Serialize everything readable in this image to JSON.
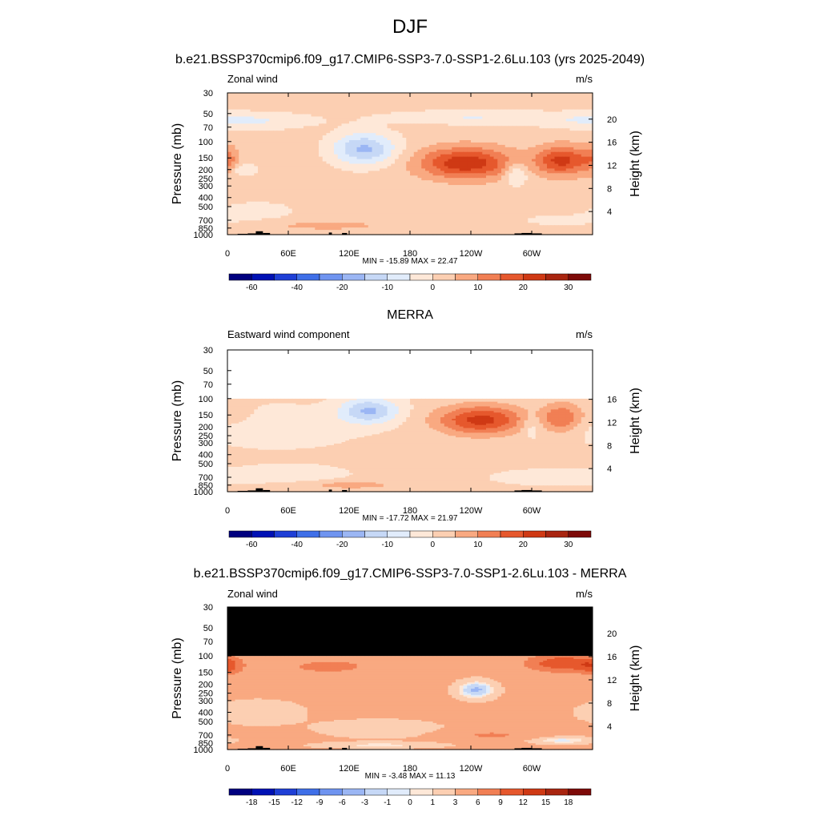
{
  "header": {
    "title": "DJF"
  },
  "colors": {
    "scale_main": [
      "#00007f",
      "#0011b4",
      "#1f3fd6",
      "#3f6fe8",
      "#6f94f0",
      "#9bb6f4",
      "#c6d8f6",
      "#e1ecfb",
      "#fee8d8",
      "#fccfb2",
      "#f9a981",
      "#f17f54",
      "#e6582d",
      "#cf3914",
      "#a92510",
      "#7d0a08"
    ],
    "scale_diff": [
      "#00007f",
      "#0011b4",
      "#1f3fd6",
      "#3f6fe8",
      "#6f94f0",
      "#9bb6f4",
      "#c6d8f6",
      "#e1ecfb",
      "#fee8d8",
      "#fccfb2",
      "#f9a981",
      "#f17f54",
      "#e6582d",
      "#cf3914",
      "#a92510",
      "#7d0a08"
    ],
    "missing_fill": "#000000",
    "topography": "#000000"
  },
  "chart_data": [
    {
      "type": "heatmap",
      "title": "b.e21.BSSP370cmip6.f09_g17.CMIP6-SSP3-7.0-SSP1-2.6Lu.103 (yrs 2025-2049)",
      "left_label": "Zonal wind",
      "units_label": "m/s",
      "ylabel": "Pressure (mb)",
      "ylabel_right": "Height (km)",
      "x_tick_labels": [
        "0",
        "60E",
        "120E",
        "180",
        "120W",
        "60W"
      ],
      "y_tick_labels": [
        "30",
        "50",
        "70",
        "100",
        "150",
        "200",
        "250",
        "300",
        "400",
        "500",
        "700",
        "850",
        "1000"
      ],
      "y_right_tick_labels": [
        "20",
        "16",
        "12",
        "8",
        "4"
      ],
      "stats": "MIN = -15.89  MAX =  22.47",
      "colorbar_labels": [
        "-60",
        "-40",
        "-20",
        "-10",
        "0",
        "10",
        "20",
        "30"
      ],
      "xlim": [
        0,
        360
      ],
      "ylim": [
        1000,
        30
      ],
      "y_log_scale": true,
      "missing_above_mb": null,
      "base_value": 2,
      "blobs": [
        {
          "lon": 135,
          "p": 120,
          "amp": -18,
          "slon": 22,
          "slogp": 0.28
        },
        {
          "lon": 15,
          "p": 200,
          "amp": -7,
          "slon": 10,
          "slogp": 0.12
        },
        {
          "lon": 15,
          "p": 60,
          "amp": -8,
          "slon": 45,
          "slogp": 0.15
        },
        {
          "lon": 240,
          "p": 55,
          "amp": -7,
          "slon": 60,
          "slogp": 0.12
        },
        {
          "lon": 30,
          "p": 550,
          "amp": -5,
          "slon": 25,
          "slogp": 0.15
        },
        {
          "lon": 235,
          "p": 170,
          "amp": 22,
          "slon": 32,
          "slogp": 0.27
        },
        {
          "lon": 330,
          "p": 160,
          "amp": 20,
          "slon": 18,
          "slogp": 0.25
        },
        {
          "lon": 285,
          "p": 220,
          "amp": -10,
          "slon": 8,
          "slogp": 0.2
        },
        {
          "lon": 0,
          "p": 160,
          "amp": 8,
          "slon": 8,
          "slogp": 0.25
        },
        {
          "lon": 100,
          "p": 800,
          "amp": 5,
          "slon": 40,
          "slogp": 0.08
        },
        {
          "lon": 330,
          "p": 700,
          "amp": -4,
          "slon": 30,
          "slogp": 0.1
        }
      ]
    },
    {
      "type": "heatmap",
      "title": "MERRA",
      "left_label": "Eastward wind component",
      "units_label": "m/s",
      "ylabel": "Pressure (mb)",
      "ylabel_right": "Height (km)",
      "x_tick_labels": [
        "0",
        "60E",
        "120E",
        "180",
        "120W",
        "60W"
      ],
      "y_tick_labels": [
        "30",
        "50",
        "70",
        "100",
        "150",
        "200",
        "250",
        "300",
        "400",
        "500",
        "700",
        "850",
        "1000"
      ],
      "y_right_tick_labels": [
        "16",
        "12",
        "8",
        "4"
      ],
      "stats": "MIN = -17.72  MAX =  21.97",
      "colorbar_labels": [
        "-60",
        "-40",
        "-20",
        "-10",
        "0",
        "10",
        "20",
        "30"
      ],
      "xlim": [
        0,
        360
      ],
      "ylim": [
        1000,
        30
      ],
      "y_log_scale": true,
      "missing_above_mb": 100,
      "missing_fill": "#ffffff",
      "base_value": 1,
      "blobs": [
        {
          "lon": 140,
          "p": 135,
          "amp": -17,
          "slon": 20,
          "slogp": 0.22
        },
        {
          "lon": 50,
          "p": 200,
          "amp": -6,
          "slon": 45,
          "slogp": 0.3
        },
        {
          "lon": 60,
          "p": 650,
          "amp": -5,
          "slon": 35,
          "slogp": 0.15
        },
        {
          "lon": 250,
          "p": 170,
          "amp": 21,
          "slon": 30,
          "slogp": 0.25
        },
        {
          "lon": 330,
          "p": 160,
          "amp": 14,
          "slon": 14,
          "slogp": 0.25
        },
        {
          "lon": 300,
          "p": 200,
          "amp": -6,
          "slon": 7,
          "slogp": 0.2
        },
        {
          "lon": 120,
          "p": 850,
          "amp": 6,
          "slon": 40,
          "slogp": 0.08
        },
        {
          "lon": 320,
          "p": 700,
          "amp": -5,
          "slon": 35,
          "slogp": 0.12
        },
        {
          "lon": 10,
          "p": 150,
          "amp": 4,
          "slon": 12,
          "slogp": 0.2
        }
      ]
    },
    {
      "type": "heatmap",
      "title": "b.e21.BSSP370cmip6.f09_g17.CMIP6-SSP3-7.0-SSP1-2.6Lu.103 - MERRA",
      "left_label": "Zonal wind",
      "units_label": "m/s",
      "ylabel": "Pressure (mb)",
      "ylabel_right": "Height (km)",
      "x_tick_labels": [
        "0",
        "60E",
        "120E",
        "180",
        "120W",
        "60W"
      ],
      "y_tick_labels": [
        "30",
        "50",
        "70",
        "100",
        "150",
        "200",
        "250",
        "300",
        "400",
        "500",
        "700",
        "850",
        "1000"
      ],
      "y_right_tick_labels": [
        "20",
        "16",
        "12",
        "8",
        "4"
      ],
      "stats": "MIN =  -3.48  MAX =  11.13",
      "colorbar_labels": [
        "-18",
        "-15",
        "-12",
        "-9",
        "-6",
        "-3",
        "-1",
        "0",
        "1",
        "3",
        "6",
        "9",
        "12",
        "15",
        "18"
      ],
      "xlim": [
        0,
        360
      ],
      "ylim": [
        1000,
        30
      ],
      "y_log_scale": true,
      "missing_above_mb": 100,
      "missing_fill": "#000000",
      "base_value": 3.5,
      "blobs": [
        {
          "lon": 245,
          "p": 230,
          "amp": -7,
          "slon": 12,
          "slogp": 0.14
        },
        {
          "lon": 330,
          "p": 120,
          "amp": 8,
          "slon": 25,
          "slogp": 0.15
        },
        {
          "lon": 0,
          "p": 130,
          "amp": 5,
          "slon": 10,
          "slogp": 0.15
        },
        {
          "lon": 100,
          "p": 130,
          "amp": 4,
          "slon": 30,
          "slogp": 0.12
        },
        {
          "lon": 30,
          "p": 400,
          "amp": -2,
          "slon": 30,
          "slogp": 0.2
        },
        {
          "lon": 150,
          "p": 600,
          "amp": -2,
          "slon": 40,
          "slogp": 0.15
        },
        {
          "lon": 330,
          "p": 800,
          "amp": -4,
          "slon": 20,
          "slogp": 0.06
        },
        {
          "lon": 150,
          "p": 900,
          "amp": -3,
          "slon": 40,
          "slogp": 0.05
        },
        {
          "lon": 260,
          "p": 700,
          "amp": 3,
          "slon": 30,
          "slogp": 0.08
        }
      ]
    }
  ],
  "topography": [
    {
      "lon0": 10,
      "lon1": 20,
      "p": 980
    },
    {
      "lon0": 20,
      "lon1": 30,
      "p": 970
    },
    {
      "lon0": 28,
      "lon1": 35,
      "p": 920
    },
    {
      "lon0": 35,
      "lon1": 42,
      "p": 960
    },
    {
      "lon0": 100,
      "lon1": 103,
      "p": 950
    },
    {
      "lon0": 113,
      "lon1": 118,
      "p": 960
    },
    {
      "lon0": 283,
      "lon1": 310,
      "p": 970
    },
    {
      "lon0": 290,
      "lon1": 300,
      "p": 960
    }
  ]
}
